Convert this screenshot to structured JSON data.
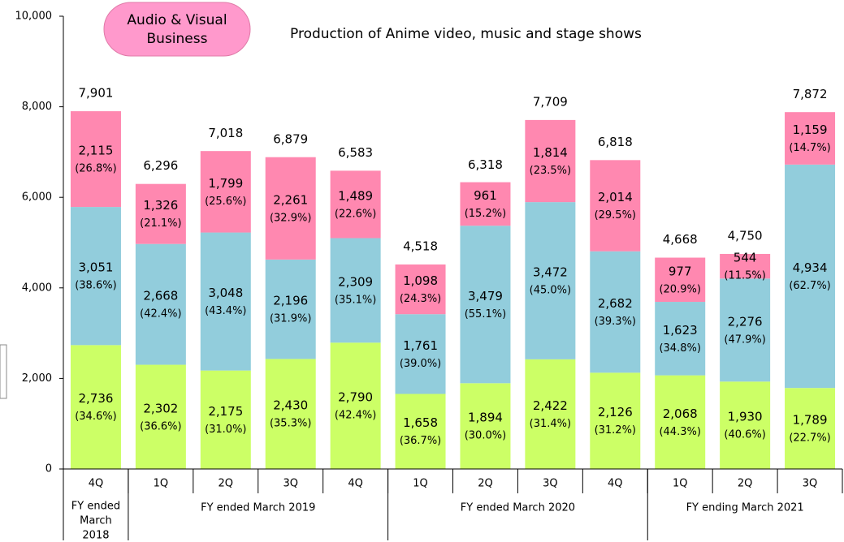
{
  "chart_data": {
    "type": "stacked_bar",
    "badge": [
      "Audio & Visual",
      "Business"
    ],
    "subtitle": "Production of Anime video, music and stage shows",
    "categories": [
      "4Q",
      "1Q",
      "2Q",
      "3Q",
      "4Q",
      "1Q",
      "2Q",
      "3Q",
      "4Q",
      "1Q",
      "2Q",
      "3Q"
    ],
    "groups": [
      {
        "label": [
          "FY ended",
          "March",
          "2018"
        ],
        "size": 1
      },
      {
        "label": [
          "FY ended March 2019"
        ],
        "size": 4
      },
      {
        "label": [
          "FY ended March 2020"
        ],
        "size": 4
      },
      {
        "label": [
          "FY ending March 2021"
        ],
        "size": 3
      }
    ],
    "series": [
      {
        "color": "#ccff66",
        "values": [
          2736,
          2302,
          2175,
          2430,
          2790,
          1658,
          1894,
          2422,
          2126,
          2068,
          1930,
          1789
        ],
        "value_labels": [
          "2,736",
          "2,302",
          "2,175",
          "2,430",
          "2,790",
          "1,658",
          "1,894",
          "2,422",
          "2,126",
          "2,068",
          "1,930",
          "1,789"
        ],
        "share_labels": [
          "(34.6%)",
          "(36.6%)",
          "(31.0%)",
          "(35.3%)",
          "(42.4%)",
          "(36.7%)",
          "(30.0%)",
          "(31.4%)",
          "(31.2%)",
          "(44.3%)",
          "(40.6%)",
          "(22.7%)"
        ]
      },
      {
        "color": "#92cddc",
        "values": [
          3051,
          2668,
          3048,
          2196,
          2309,
          1761,
          3479,
          3472,
          2682,
          1623,
          2276,
          4934
        ],
        "value_labels": [
          "3,051",
          "2,668",
          "3,048",
          "2,196",
          "2,309",
          "1,761",
          "3,479",
          "3,472",
          "2,682",
          "1,623",
          "2,276",
          "4,934"
        ],
        "share_labels": [
          "(38.6%)",
          "(42.4%)",
          "(43.4%)",
          "(31.9%)",
          "(35.1%)",
          "(39.0%)",
          "(55.1%)",
          "(45.0%)",
          "(39.3%)",
          "(34.8%)",
          "(47.9%)",
          "(62.7%)"
        ]
      },
      {
        "color": "#ff88b0",
        "values": [
          2115,
          1326,
          1799,
          2261,
          1489,
          1098,
          961,
          1814,
          2014,
          977,
          544,
          1159
        ],
        "value_labels": [
          "2,115",
          "1,326",
          "1,799",
          "2,261",
          "1,489",
          "1,098",
          "961",
          "1,814",
          "2,014",
          "977",
          "544",
          "1,159"
        ],
        "share_labels": [
          "(26.8%)",
          "(21.1%)",
          "(25.6%)",
          "(32.9%)",
          "(22.6%)",
          "(24.3%)",
          "(15.2%)",
          "(23.5%)",
          "(29.5%)",
          "(20.9%)",
          "(11.5%)",
          "(14.7%)"
        ]
      }
    ],
    "totals": [
      7901,
      6296,
      7018,
      6879,
      6583,
      4518,
      6318,
      7709,
      6818,
      4668,
      4750,
      7872
    ],
    "total_labels": [
      "7,901",
      "6,296",
      "7,018",
      "6,879",
      "6,583",
      "4,518",
      "6,318",
      "7,709",
      "6,818",
      "4,668",
      "4,750",
      "7,872"
    ],
    "ylim": [
      0,
      10000
    ],
    "yticks": [
      0,
      {
        "value": 2000,
        "label": "2,000"
      },
      {
        "value": 4000,
        "label": "4,000"
      },
      {
        "value": 6000,
        "label": "6,000"
      },
      {
        "value": 8000,
        "label": "8,000"
      },
      {
        "value": 10000,
        "label": "10,000"
      }
    ]
  }
}
